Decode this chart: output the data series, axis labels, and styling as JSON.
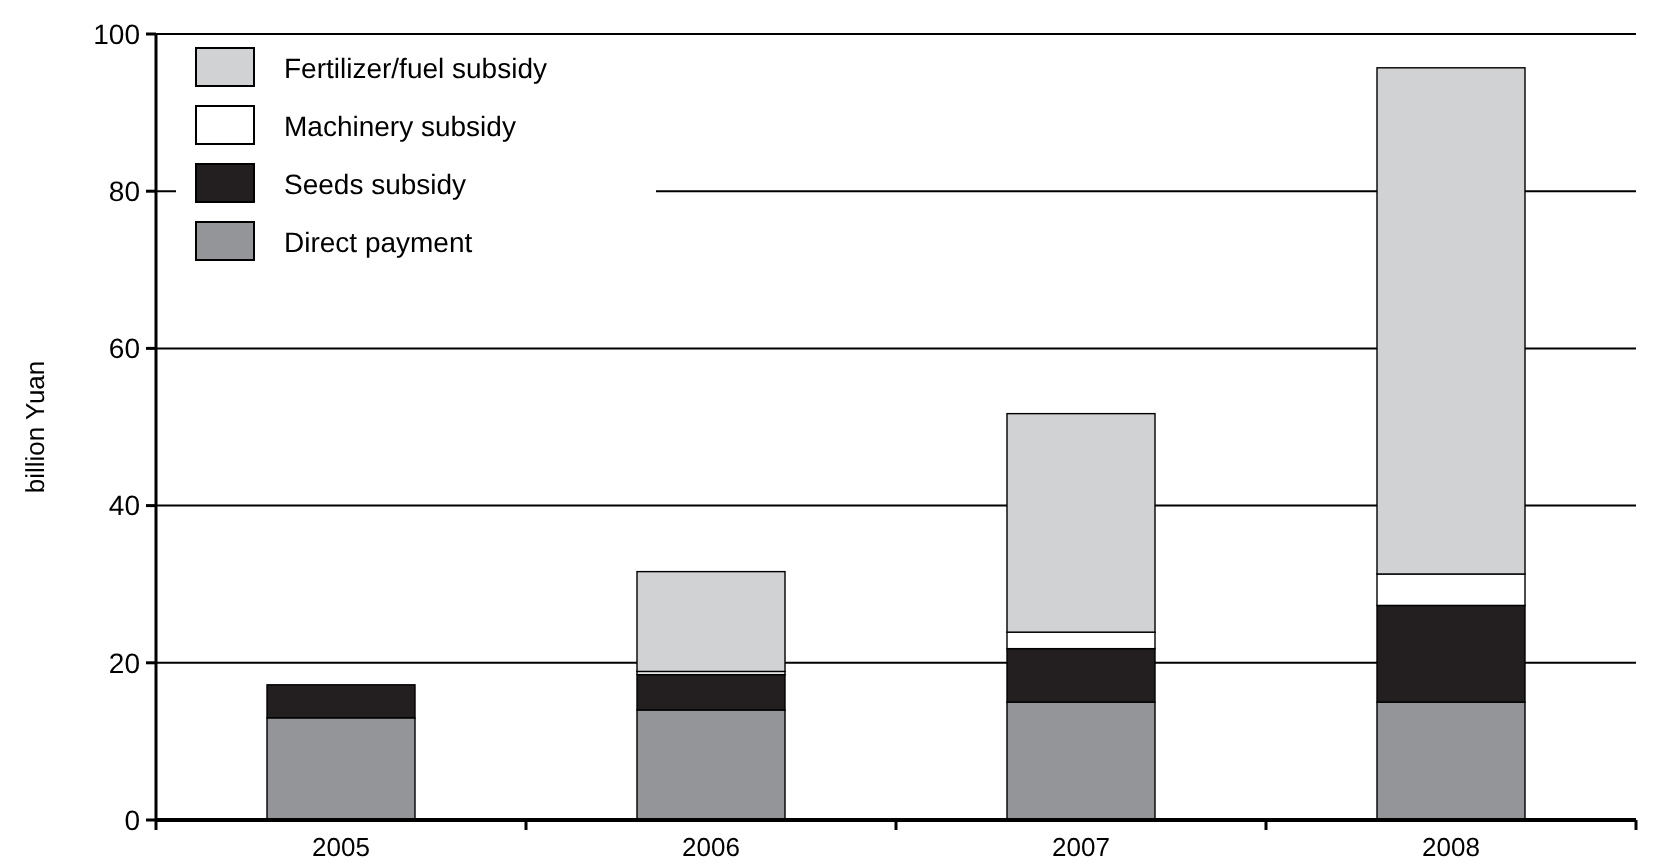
{
  "chart_data": {
    "type": "bar",
    "stacked": true,
    "ylabel": "billion Yuan",
    "categories": [
      "2005",
      "2006",
      "2007",
      "2008"
    ],
    "series": [
      {
        "name": "Direct payment",
        "color": "#939598",
        "values": [
          13,
          14,
          15,
          15
        ]
      },
      {
        "name": "Seeds subsidy",
        "color": "#231f20",
        "values": [
          4.2,
          4.5,
          6.8,
          12.3
        ]
      },
      {
        "name": "Machinery subsidy",
        "color": "#ffffff",
        "values": [
          0,
          0.4,
          2.1,
          4.0
        ]
      },
      {
        "name": "Fertilizer/fuel subsidy",
        "color": "#d1d2d4",
        "values": [
          0,
          12.7,
          27.8,
          64.4
        ]
      }
    ],
    "ylim": [
      0,
      100
    ],
    "yticks": [
      0,
      20,
      40,
      60,
      80,
      100
    ],
    "grid": "y",
    "legend": "top left"
  }
}
